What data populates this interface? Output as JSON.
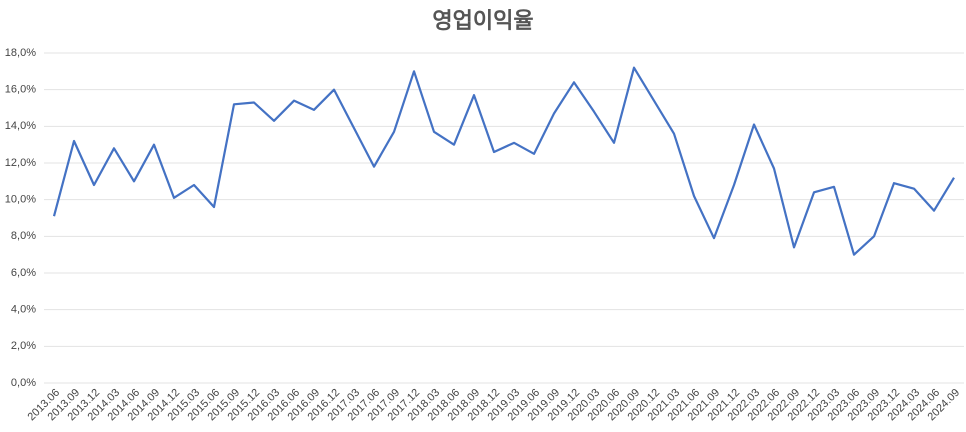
{
  "chart_data": {
    "type": "line",
    "title": "영업이익율",
    "categories": [
      "2013.06",
      "2013.09",
      "2013.12",
      "2014.03",
      "2014.06",
      "2014.09",
      "2014.12",
      "2015.03",
      "2015.06",
      "2015.09",
      "2015.12",
      "2016.03",
      "2016.06",
      "2016.09",
      "2016.12",
      "2017.03",
      "2017.06",
      "2017.09",
      "2017.12",
      "2018.03",
      "2018.06",
      "2018.09",
      "2018.12",
      "2019.03",
      "2019.06",
      "2019.09",
      "2019.12",
      "2020.03",
      "2020.06",
      "2020.09",
      "2020.12",
      "2021.03",
      "2021.06",
      "2021.09",
      "2021.12",
      "2022.03",
      "2022.06",
      "2022.09",
      "2022.12",
      "2023.03",
      "2023.06",
      "2023.09",
      "2023.12",
      "2024.03",
      "2024.06",
      "2024.09"
    ],
    "values": [
      9.1,
      13.2,
      10.8,
      12.8,
      11.0,
      13.0,
      10.1,
      10.8,
      9.6,
      15.2,
      15.3,
      14.3,
      15.4,
      14.9,
      16.0,
      13.9,
      11.8,
      13.7,
      17.0,
      13.7,
      13.0,
      15.7,
      12.6,
      13.1,
      12.5,
      14.7,
      16.4,
      14.8,
      13.1,
      17.2,
      15.4,
      13.6,
      10.2,
      7.9,
      10.8,
      14.1,
      11.7,
      7.4,
      10.4,
      10.7,
      7.0,
      8.0,
      10.9,
      10.6,
      9.4,
      11.2
    ],
    "color": "#4472c4",
    "ylim": [
      0,
      18
    ],
    "yticks": [
      {
        "value": 0,
        "label": "0,0%"
      },
      {
        "value": 2,
        "label": "2,0%"
      },
      {
        "value": 4,
        "label": "4,0%"
      },
      {
        "value": 6,
        "label": "6,0%"
      },
      {
        "value": 8,
        "label": "8,0%"
      },
      {
        "value": 10,
        "label": "10,0%"
      },
      {
        "value": 12,
        "label": "12,0%"
      },
      {
        "value": 14,
        "label": "14,0%"
      },
      {
        "value": 16,
        "label": "16,0%"
      },
      {
        "value": 18,
        "label": "18,0%"
      }
    ],
    "grid": true
  }
}
